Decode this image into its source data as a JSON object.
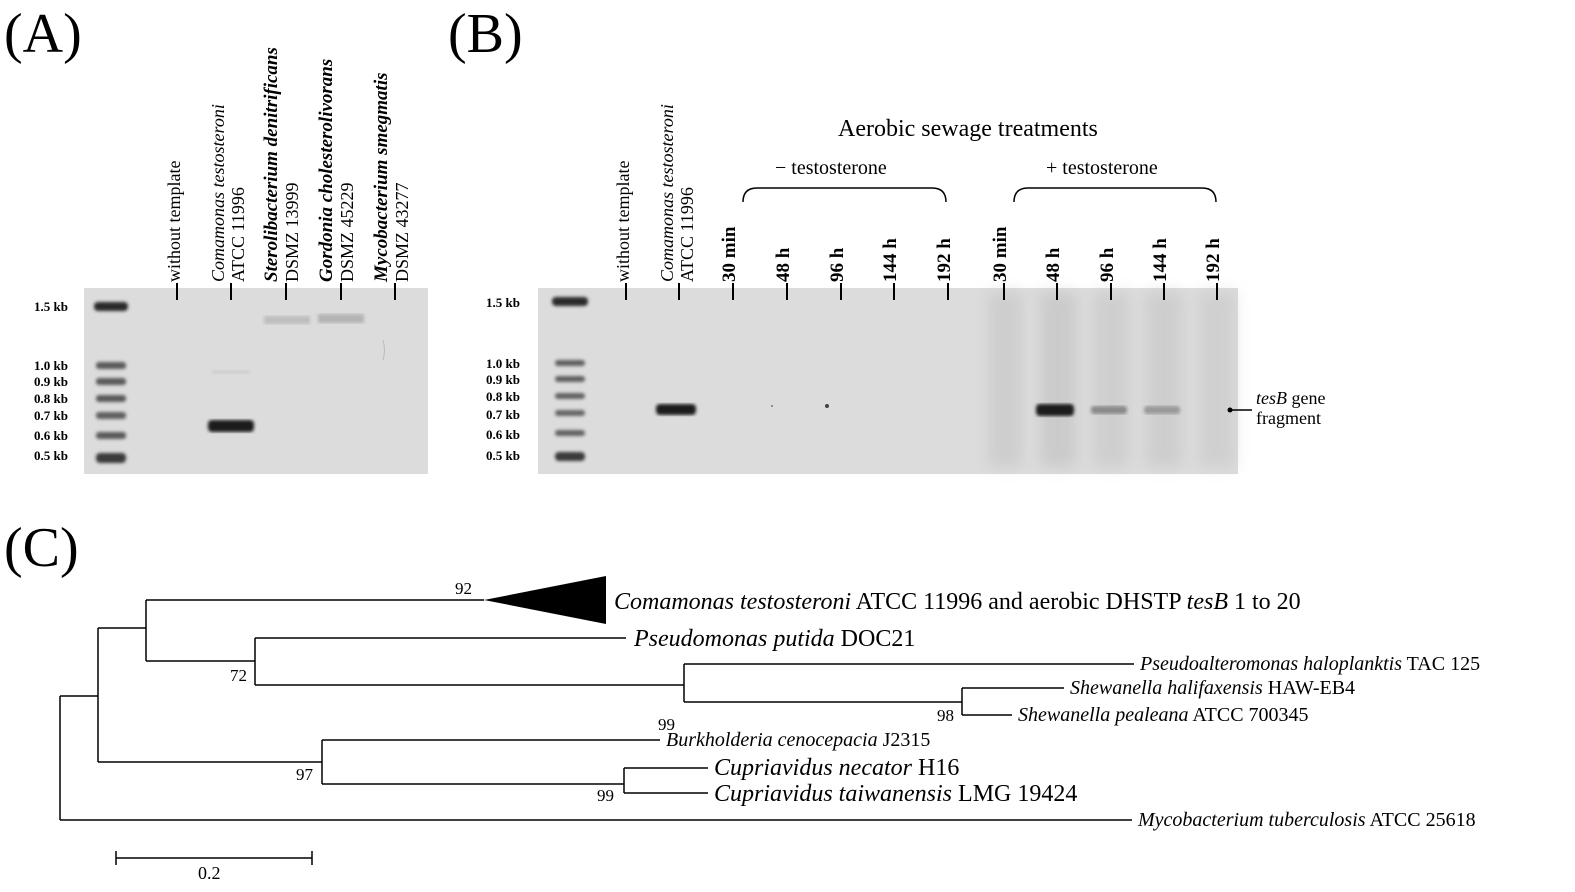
{
  "panels": {
    "a": "(A)",
    "b": "(B)",
    "c": "(C)"
  },
  "ladder_labels": [
    "1.5 kb",
    "1.0 kb",
    "0.9 kb",
    "0.8 kb",
    "0.7 kb",
    "0.6 kb",
    "0.5 kb"
  ],
  "panel_a": {
    "lanes": [
      {
        "line1": "without template",
        "line2": ""
      },
      {
        "line1": "Comamonas testosteroni",
        "line2": "ATCC 11996"
      },
      {
        "line1": "Sterolibacterium denitrificans",
        "line2": "DSMZ 13999"
      },
      {
        "line1": "Gordonia cholesterolivorans",
        "line2": "DSMZ 45229"
      },
      {
        "line1": "Mycobacterium smegmatis",
        "line2": "DSMZ 43277"
      }
    ]
  },
  "panel_b": {
    "heading": "Aerobic sewage treatments",
    "group_minus": "− testosterone",
    "group_plus": "+ testosterone",
    "lanes": [
      {
        "line1": "without template",
        "line2": ""
      },
      {
        "line1": "Comamonas testosteroni",
        "line2": "ATCC 11996"
      },
      {
        "line1": "30 min"
      },
      {
        "line1": "48 h"
      },
      {
        "line1": "96 h"
      },
      {
        "line1": "144 h"
      },
      {
        "line1": "192 h"
      },
      {
        "line1": "30 min"
      },
      {
        "line1": "48 h"
      },
      {
        "line1": "96 h"
      },
      {
        "line1": "144 h"
      },
      {
        "line1": "192 h"
      }
    ],
    "band_label_gene": "tesB",
    "band_label_rest": " gene",
    "band_label_line2": "fragment"
  },
  "panel_c": {
    "taxa": {
      "t1_name": "Comamonas testosteroni",
      "t1_mid": " ATCC 11996 and aerobic DHSTP ",
      "t1_gene": "tesB",
      "t1_end": " 1 to 20",
      "t2_name": "Pseudomonas putida",
      "t2_rest": " DOC21",
      "t3_name": "Pseudoalteromonas haloplanktis",
      "t3_rest": " TAC 125",
      "t4_name": "Shewanella halifaxensis",
      "t4_rest": " HAW-EB4",
      "t5_name": "Shewanella pealeana",
      "t5_rest": " ATCC 700345",
      "t6_name": "Burkholderia cenocepacia",
      "t6_rest": " J2315",
      "t7_name": "Cupriavidus necator",
      "t7_rest": " H16",
      "t8_name": "Cupriavidus taiwanensis",
      "t8_rest": " LMG 19424",
      "t9_name": "Mycobacterium tuberculosis",
      "t9_rest": " ATCC 25618"
    },
    "bootstrap": {
      "b92": "92",
      "b72": "72",
      "b99a": "99",
      "b98": "98",
      "b97": "97",
      "b99b": "99"
    },
    "scale_label": "0.2"
  }
}
